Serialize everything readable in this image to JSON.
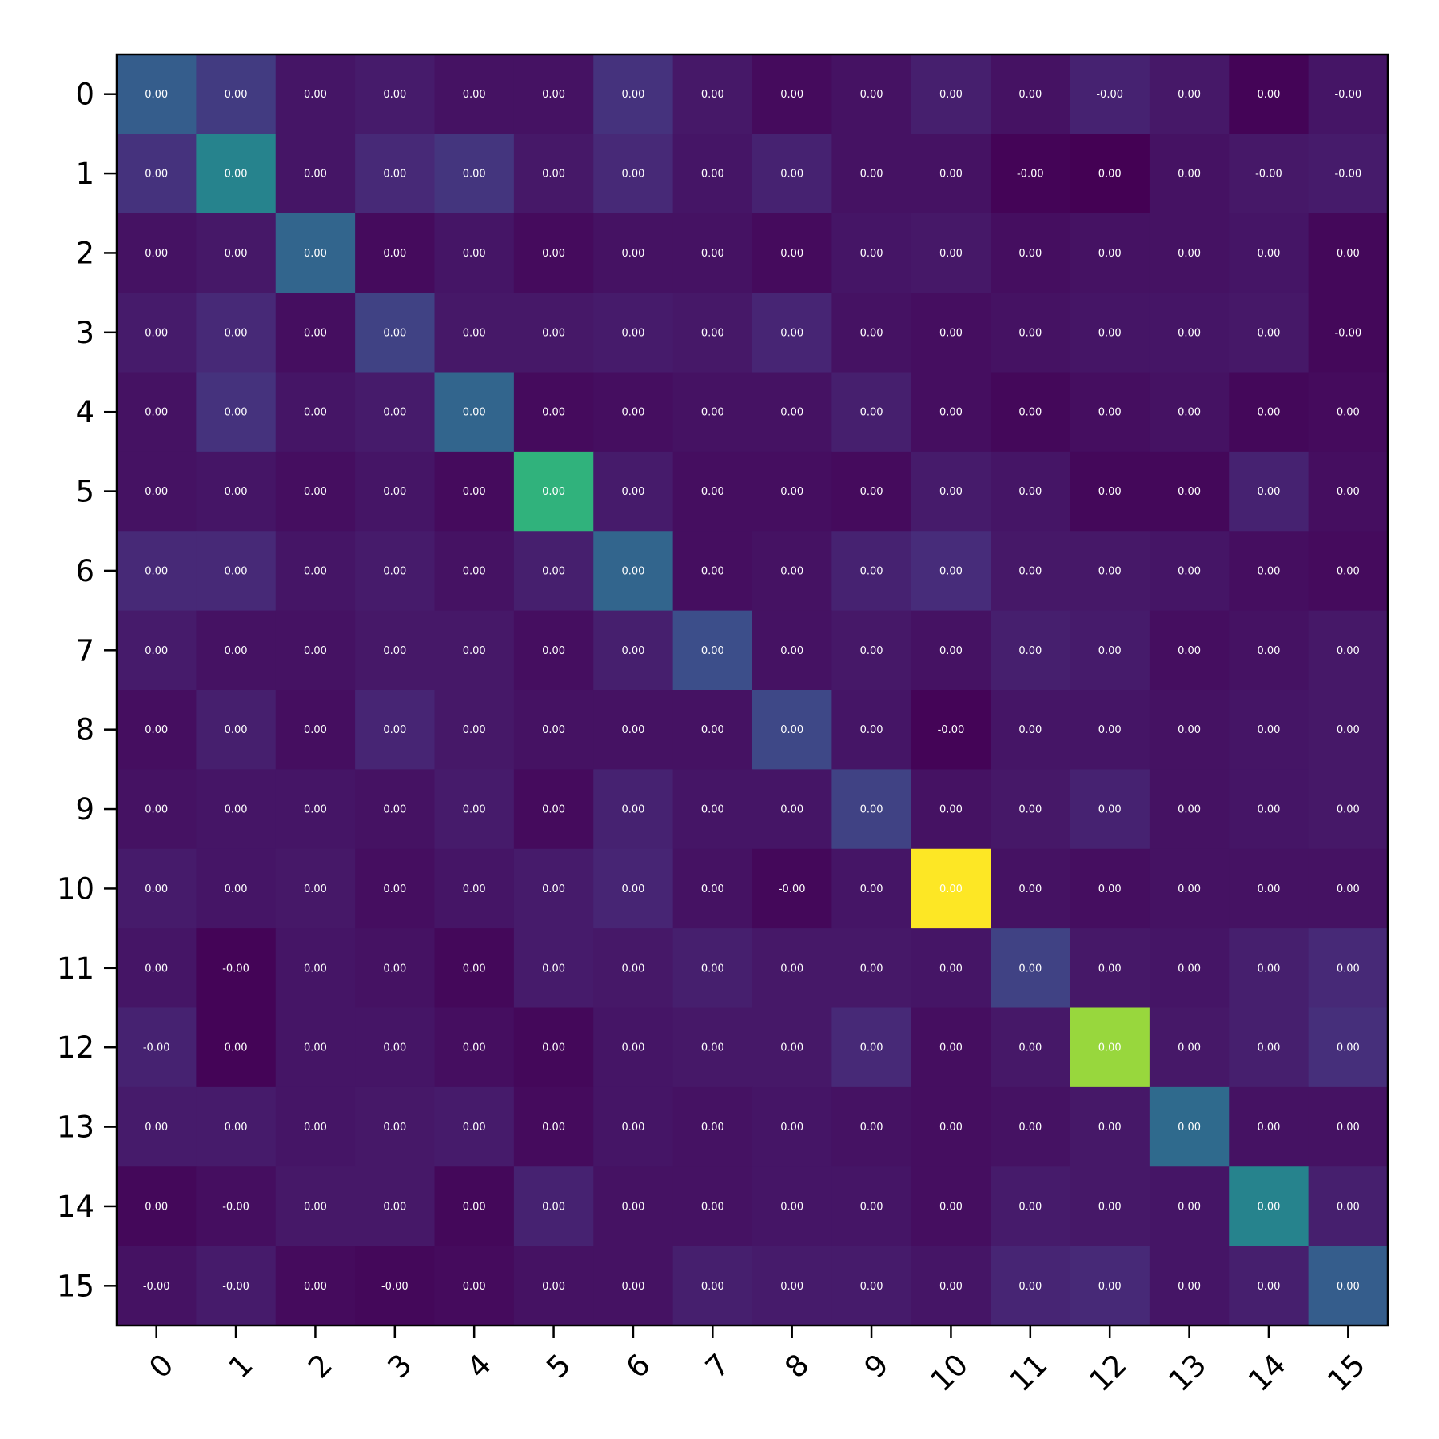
{
  "chart_data": {
    "type": "heatmap",
    "title": "",
    "xlabel": "",
    "ylabel": "",
    "colormap": "viridis",
    "x_tick_labels": [
      "0",
      "1",
      "2",
      "3",
      "4",
      "5",
      "6",
      "7",
      "8",
      "9",
      "10",
      "11",
      "12",
      "13",
      "14",
      "15"
    ],
    "y_tick_labels": [
      "0",
      "1",
      "2",
      "3",
      "4",
      "5",
      "6",
      "7",
      "8",
      "9",
      "10",
      "11",
      "12",
      "13",
      "14",
      "15"
    ],
    "color_intensity": [
      [
        0.3,
        0.18,
        0.06,
        0.08,
        0.05,
        0.05,
        0.15,
        0.07,
        0.03,
        0.05,
        0.09,
        0.05,
        0.1,
        0.07,
        0.01,
        0.06
      ],
      [
        0.15,
        0.45,
        0.06,
        0.12,
        0.16,
        0.07,
        0.12,
        0.06,
        0.1,
        0.05,
        0.05,
        0.01,
        0.0,
        0.05,
        0.07,
        0.08
      ],
      [
        0.05,
        0.07,
        0.33,
        0.03,
        0.06,
        0.03,
        0.05,
        0.05,
        0.03,
        0.06,
        0.07,
        0.04,
        0.05,
        0.05,
        0.06,
        0.02
      ],
      [
        0.08,
        0.12,
        0.04,
        0.2,
        0.07,
        0.07,
        0.08,
        0.07,
        0.11,
        0.05,
        0.04,
        0.05,
        0.06,
        0.06,
        0.07,
        0.02
      ],
      [
        0.05,
        0.15,
        0.06,
        0.08,
        0.33,
        0.03,
        0.04,
        0.05,
        0.05,
        0.09,
        0.04,
        0.02,
        0.04,
        0.05,
        0.02,
        0.03
      ],
      [
        0.05,
        0.06,
        0.04,
        0.06,
        0.03,
        0.65,
        0.08,
        0.04,
        0.04,
        0.03,
        0.08,
        0.06,
        0.02,
        0.02,
        0.1,
        0.04
      ],
      [
        0.12,
        0.12,
        0.06,
        0.08,
        0.05,
        0.09,
        0.33,
        0.04,
        0.05,
        0.1,
        0.13,
        0.07,
        0.07,
        0.06,
        0.04,
        0.03
      ],
      [
        0.08,
        0.05,
        0.05,
        0.07,
        0.07,
        0.04,
        0.09,
        0.24,
        0.05,
        0.07,
        0.05,
        0.09,
        0.08,
        0.04,
        0.05,
        0.07
      ],
      [
        0.04,
        0.09,
        0.04,
        0.11,
        0.07,
        0.05,
        0.05,
        0.05,
        0.22,
        0.06,
        0.01,
        0.06,
        0.06,
        0.05,
        0.06,
        0.07
      ],
      [
        0.05,
        0.06,
        0.06,
        0.05,
        0.08,
        0.03,
        0.1,
        0.06,
        0.06,
        0.2,
        0.05,
        0.07,
        0.1,
        0.05,
        0.06,
        0.07
      ],
      [
        0.08,
        0.06,
        0.07,
        0.04,
        0.06,
        0.08,
        0.11,
        0.05,
        0.02,
        0.06,
        1.0,
        0.05,
        0.04,
        0.05,
        0.05,
        0.05
      ],
      [
        0.06,
        0.01,
        0.06,
        0.05,
        0.02,
        0.08,
        0.07,
        0.09,
        0.07,
        0.07,
        0.06,
        0.2,
        0.07,
        0.06,
        0.09,
        0.12
      ],
      [
        0.1,
        0.01,
        0.06,
        0.06,
        0.04,
        0.02,
        0.06,
        0.07,
        0.07,
        0.12,
        0.04,
        0.07,
        0.85,
        0.07,
        0.09,
        0.14
      ],
      [
        0.08,
        0.08,
        0.06,
        0.07,
        0.08,
        0.03,
        0.06,
        0.05,
        0.06,
        0.05,
        0.04,
        0.05,
        0.07,
        0.35,
        0.05,
        0.05
      ],
      [
        0.02,
        0.04,
        0.07,
        0.07,
        0.02,
        0.1,
        0.05,
        0.05,
        0.06,
        0.06,
        0.04,
        0.08,
        0.07,
        0.06,
        0.45,
        0.09
      ],
      [
        0.05,
        0.08,
        0.03,
        0.02,
        0.03,
        0.05,
        0.05,
        0.09,
        0.08,
        0.08,
        0.06,
        0.11,
        0.12,
        0.06,
        0.09,
        0.3
      ]
    ],
    "cell_labels": [
      [
        "0.00",
        "0.00",
        "0.00",
        "0.00",
        "0.00",
        "0.00",
        "0.00",
        "0.00",
        "0.00",
        "0.00",
        "0.00",
        "0.00",
        "-0.00",
        "0.00",
        "0.00",
        "-0.00"
      ],
      [
        "0.00",
        "0.00",
        "0.00",
        "0.00",
        "0.00",
        "0.00",
        "0.00",
        "0.00",
        "0.00",
        "0.00",
        "0.00",
        "-0.00",
        "0.00",
        "0.00",
        "-0.00",
        "-0.00"
      ],
      [
        "0.00",
        "0.00",
        "0.00",
        "0.00",
        "0.00",
        "0.00",
        "0.00",
        "0.00",
        "0.00",
        "0.00",
        "0.00",
        "0.00",
        "0.00",
        "0.00",
        "0.00",
        "0.00"
      ],
      [
        "0.00",
        "0.00",
        "0.00",
        "0.00",
        "0.00",
        "0.00",
        "0.00",
        "0.00",
        "0.00",
        "0.00",
        "0.00",
        "0.00",
        "0.00",
        "0.00",
        "0.00",
        "-0.00"
      ],
      [
        "0.00",
        "0.00",
        "0.00",
        "0.00",
        "0.00",
        "0.00",
        "0.00",
        "0.00",
        "0.00",
        "0.00",
        "0.00",
        "0.00",
        "0.00",
        "0.00",
        "0.00",
        "0.00"
      ],
      [
        "0.00",
        "0.00",
        "0.00",
        "0.00",
        "0.00",
        "0.00",
        "0.00",
        "0.00",
        "0.00",
        "0.00",
        "0.00",
        "0.00",
        "0.00",
        "0.00",
        "0.00",
        "0.00"
      ],
      [
        "0.00",
        "0.00",
        "0.00",
        "0.00",
        "0.00",
        "0.00",
        "0.00",
        "0.00",
        "0.00",
        "0.00",
        "0.00",
        "0.00",
        "0.00",
        "0.00",
        "0.00",
        "0.00"
      ],
      [
        "0.00",
        "0.00",
        "0.00",
        "0.00",
        "0.00",
        "0.00",
        "0.00",
        "0.00",
        "0.00",
        "0.00",
        "0.00",
        "0.00",
        "0.00",
        "0.00",
        "0.00",
        "0.00"
      ],
      [
        "0.00",
        "0.00",
        "0.00",
        "0.00",
        "0.00",
        "0.00",
        "0.00",
        "0.00",
        "0.00",
        "0.00",
        "-0.00",
        "0.00",
        "0.00",
        "0.00",
        "0.00",
        "0.00"
      ],
      [
        "0.00",
        "0.00",
        "0.00",
        "0.00",
        "0.00",
        "0.00",
        "0.00",
        "0.00",
        "0.00",
        "0.00",
        "0.00",
        "0.00",
        "0.00",
        "0.00",
        "0.00",
        "0.00"
      ],
      [
        "0.00",
        "0.00",
        "0.00",
        "0.00",
        "0.00",
        "0.00",
        "0.00",
        "0.00",
        "-0.00",
        "0.00",
        "0.00",
        "0.00",
        "0.00",
        "0.00",
        "0.00",
        "0.00"
      ],
      [
        "0.00",
        "-0.00",
        "0.00",
        "0.00",
        "0.00",
        "0.00",
        "0.00",
        "0.00",
        "0.00",
        "0.00",
        "0.00",
        "0.00",
        "0.00",
        "0.00",
        "0.00",
        "0.00"
      ],
      [
        "-0.00",
        "0.00",
        "0.00",
        "0.00",
        "0.00",
        "0.00",
        "0.00",
        "0.00",
        "0.00",
        "0.00",
        "0.00",
        "0.00",
        "0.00",
        "0.00",
        "0.00",
        "0.00"
      ],
      [
        "0.00",
        "0.00",
        "0.00",
        "0.00",
        "0.00",
        "0.00",
        "0.00",
        "0.00",
        "0.00",
        "0.00",
        "0.00",
        "0.00",
        "0.00",
        "0.00",
        "0.00",
        "0.00"
      ],
      [
        "0.00",
        "-0.00",
        "0.00",
        "0.00",
        "0.00",
        "0.00",
        "0.00",
        "0.00",
        "0.00",
        "0.00",
        "0.00",
        "0.00",
        "0.00",
        "0.00",
        "0.00",
        "0.00"
      ],
      [
        "-0.00",
        "-0.00",
        "0.00",
        "-0.00",
        "0.00",
        "0.00",
        "0.00",
        "0.00",
        "0.00",
        "0.00",
        "0.00",
        "0.00",
        "0.00",
        "0.00",
        "0.00",
        "0.00"
      ]
    ],
    "grid": false,
    "legend": "none",
    "colorbar": false
  }
}
